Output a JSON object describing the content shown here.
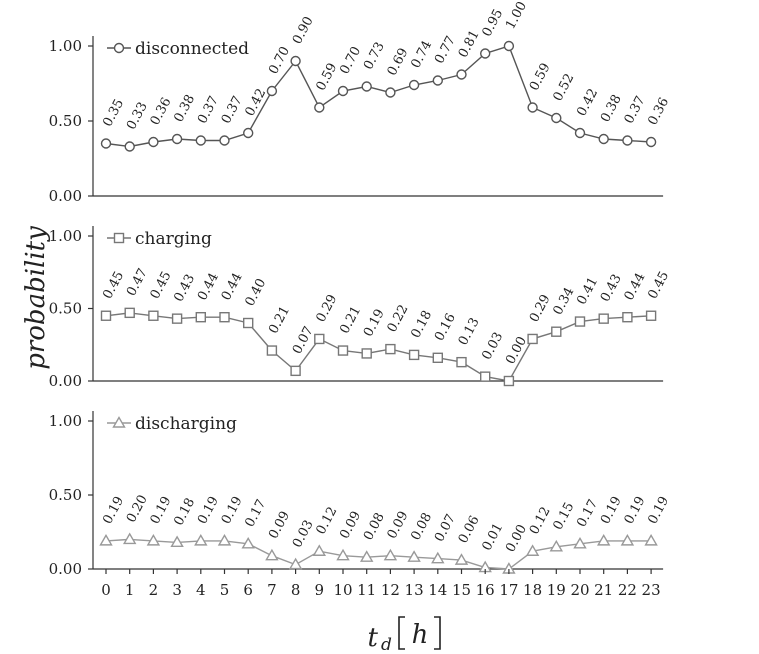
{
  "chart_data": {
    "type": "line",
    "x": [
      0,
      1,
      2,
      3,
      4,
      5,
      6,
      7,
      8,
      9,
      10,
      11,
      12,
      13,
      14,
      15,
      16,
      17,
      18,
      19,
      20,
      21,
      22,
      23
    ],
    "xlabel_main": "t",
    "xlabel_sub": "d",
    "xlabel_unit": "h",
    "ylabel": "probability",
    "ylim": [
      0,
      1
    ],
    "yticks": [
      "0.00",
      "0.50",
      "1.00"
    ],
    "grid": false,
    "panels": [
      {
        "name": "disconnected",
        "marker": "circle",
        "color": "#555555",
        "values": [
          0.35,
          0.33,
          0.36,
          0.38,
          0.37,
          0.37,
          0.42,
          0.7,
          0.9,
          0.59,
          0.7,
          0.73,
          0.69,
          0.74,
          0.77,
          0.81,
          0.95,
          1.0,
          0.59,
          0.52,
          0.42,
          0.38,
          0.37,
          0.36
        ],
        "labels": [
          "0.35",
          "0.33",
          "0.36",
          "0.38",
          "0.37",
          "0.37",
          "0.42",
          "0.70",
          "0.90",
          "0.59",
          "0.70",
          "0.73",
          "0.69",
          "0.74",
          "0.77",
          "0.81",
          "0.95",
          "1.00",
          "0.59",
          "0.52",
          "0.42",
          "0.38",
          "0.37",
          "0.36"
        ]
      },
      {
        "name": "charging",
        "marker": "square",
        "color": "#777777",
        "values": [
          0.45,
          0.47,
          0.45,
          0.43,
          0.44,
          0.44,
          0.4,
          0.21,
          0.07,
          0.29,
          0.21,
          0.19,
          0.22,
          0.18,
          0.16,
          0.13,
          0.03,
          0.0,
          0.29,
          0.34,
          0.41,
          0.43,
          0.44,
          0.45
        ],
        "labels": [
          "0.45",
          "0.47",
          "0.45",
          "0.43",
          "0.44",
          "0.44",
          "0.40",
          "0.21",
          "0.07",
          "0.29",
          "0.21",
          "0.19",
          "0.22",
          "0.18",
          "0.16",
          "0.13",
          "0.03",
          "0.00",
          "0.29",
          "0.34",
          "0.41",
          "0.43",
          "0.44",
          "0.45"
        ]
      },
      {
        "name": "discharging",
        "marker": "triangle",
        "color": "#999999",
        "values": [
          0.19,
          0.2,
          0.19,
          0.18,
          0.19,
          0.19,
          0.17,
          0.09,
          0.03,
          0.12,
          0.09,
          0.08,
          0.09,
          0.08,
          0.07,
          0.06,
          0.01,
          0.0,
          0.12,
          0.15,
          0.17,
          0.19,
          0.19,
          0.19
        ],
        "labels": [
          "0.19",
          "0.20",
          "0.19",
          "0.18",
          "0.19",
          "0.19",
          "0.17",
          "0.09",
          "0.03",
          "0.12",
          "0.09",
          "0.08",
          "0.09",
          "0.08",
          "0.07",
          "0.06",
          "0.01",
          "0.00",
          "0.12",
          "0.15",
          "0.17",
          "0.19",
          "0.19",
          "0.19"
        ]
      }
    ]
  }
}
